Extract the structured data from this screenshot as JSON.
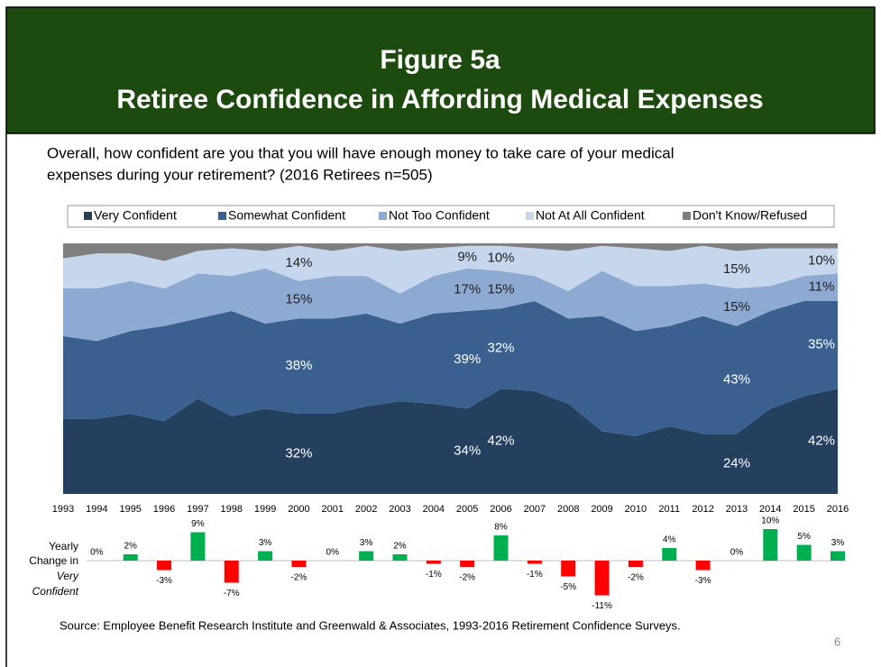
{
  "header": {
    "title": [
      "Figure 5a",
      "Retiree Confidence in Affording Medical Expenses"
    ]
  },
  "question": [
    "Overall, how confident are you that you will have enough money to take care of your medical",
    "expenses during your retirement? (2016 Retirees n=505)"
  ],
  "chart_data": [
    {
      "type": "area",
      "stacked": true,
      "categories": [
        "1993",
        "1994",
        "1995",
        "1996",
        "1997",
        "1998",
        "1999",
        "2000",
        "2001",
        "2002",
        "2003",
        "2004",
        "2005",
        "2006",
        "2007",
        "2008",
        "2009",
        "2010",
        "2011",
        "2012",
        "2013",
        "2014",
        "2015",
        "2016"
      ],
      "ylim": [
        0,
        100
      ],
      "series": [
        {
          "name": "Very Confident",
          "color": "#253f5f",
          "values": [
            30,
            30,
            32,
            29,
            38,
            31,
            34,
            32,
            32,
            35,
            37,
            36,
            34,
            42,
            41,
            36,
            25,
            23,
            27,
            24,
            24,
            34,
            39,
            42
          ],
          "value_labels": [
            null,
            null,
            null,
            null,
            null,
            null,
            null,
            "32%",
            null,
            null,
            null,
            null,
            "34%",
            "42%",
            null,
            null,
            null,
            null,
            null,
            null,
            "24%",
            null,
            null,
            "42%"
          ]
        },
        {
          "name": "Somewhat Confident",
          "color": "#3a6090",
          "values": [
            33,
            31,
            33,
            38,
            32,
            42,
            34,
            38,
            38,
            37,
            31,
            36,
            39,
            32,
            36,
            34,
            46,
            42,
            40,
            47,
            43,
            39,
            38,
            35
          ],
          "value_labels": [
            null,
            null,
            null,
            null,
            null,
            null,
            null,
            "38%",
            null,
            null,
            null,
            null,
            "39%",
            "32%",
            null,
            null,
            null,
            null,
            null,
            null,
            "43%",
            null,
            null,
            "35%"
          ]
        },
        {
          "name": "Not Too Confident",
          "color": "#8faad2",
          "values": [
            19,
            21,
            20,
            15,
            18,
            14,
            22,
            15,
            17,
            15,
            12,
            15,
            17,
            15,
            10,
            11,
            18,
            18,
            16,
            13,
            15,
            10,
            10,
            11
          ],
          "value_labels": [
            null,
            null,
            null,
            null,
            null,
            null,
            null,
            "15%",
            null,
            null,
            null,
            null,
            "17%",
            "15%",
            null,
            null,
            null,
            null,
            null,
            null,
            "15%",
            null,
            null,
            "11%"
          ]
        },
        {
          "name": "Not At All Confident",
          "color": "#c6d7ed",
          "values": [
            12,
            14,
            11,
            11,
            9,
            11,
            7,
            14,
            10,
            12,
            17,
            11,
            9,
            10,
            11,
            16,
            10,
            15,
            14,
            15,
            15,
            15,
            11,
            10
          ],
          "value_labels": [
            null,
            null,
            null,
            null,
            null,
            null,
            null,
            "14%",
            null,
            null,
            null,
            null,
            "9%",
            "10%",
            null,
            null,
            null,
            null,
            null,
            null,
            "15%",
            null,
            null,
            "10%"
          ]
        },
        {
          "name": "Don't Know/Refused",
          "color": "#7f7f7f",
          "values": [
            6,
            4,
            4,
            7,
            3,
            2,
            3,
            1,
            3,
            1,
            3,
            2,
            1,
            1,
            2,
            3,
            1,
            2,
            3,
            1,
            3,
            2,
            2,
            2
          ]
        }
      ]
    },
    {
      "type": "bar",
      "ylabel": [
        "Yearly",
        "Change in",
        "Very",
        "Confident"
      ],
      "ylim": [
        -12,
        10
      ],
      "positive_color": "#00b050",
      "negative_color": "#ff0000",
      "values": [
        null,
        0,
        2,
        -3,
        9,
        -7,
        3,
        -2,
        0,
        3,
        2,
        -1,
        -2,
        8,
        -1,
        -5,
        -11,
        -2,
        4,
        -3,
        0,
        10,
        5,
        3
      ],
      "value_labels": [
        null,
        "0%",
        "2%",
        "-3%",
        "9%",
        "-7%",
        "3%",
        "-2%",
        "0%",
        "3%",
        "2%",
        "-1%",
        "-2%",
        "8%",
        "-1%",
        "-5%",
        "-11%",
        "-2%",
        "4%",
        "-3%",
        "0%",
        "10%",
        "5%",
        "3%"
      ]
    }
  ],
  "source": "Source:  Employee Benefit Research Institute and Greenwald & Associates, 1993-2016 Retirement Confidence Surveys.",
  "page_number": "6"
}
